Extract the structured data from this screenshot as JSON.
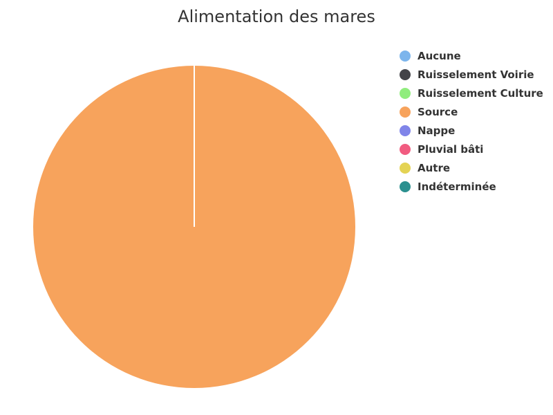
{
  "chart_data": {
    "type": "pie",
    "title": "Alimentation des mares",
    "legend_position": "top-right",
    "categories": [
      "Aucune",
      "Ruisselement Voirie",
      "Ruisselement Culture",
      "Source",
      "Nappe",
      "Pluvial bâti",
      "Autre",
      "Indéterminée"
    ],
    "values": [
      0,
      0,
      0,
      100,
      0,
      0,
      0,
      0
    ],
    "colors": [
      "#7cb5ec",
      "#434348",
      "#90ed7d",
      "#f7a35c",
      "#8085e9",
      "#f15c80",
      "#e4d354",
      "#2b908f"
    ]
  }
}
